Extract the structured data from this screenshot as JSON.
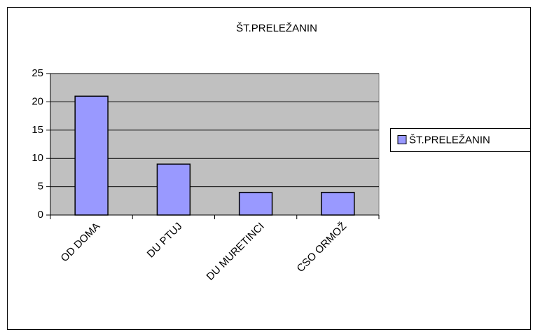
{
  "chart_data": {
    "type": "bar",
    "title": "ŠT.PRELEŽANIN",
    "categories": [
      "OD DOMA",
      "DU PTUJ",
      "DU MURETINCI",
      "CSO ORMOŽ"
    ],
    "series": [
      {
        "name": "ŠT.PRELEŽANIN",
        "color": "#9999ff",
        "values": [
          21,
          9,
          4,
          4
        ]
      }
    ],
    "ylim": [
      0,
      25
    ],
    "yticks": [
      0,
      5,
      10,
      15,
      20,
      25
    ],
    "grid": true,
    "legend": "right"
  }
}
